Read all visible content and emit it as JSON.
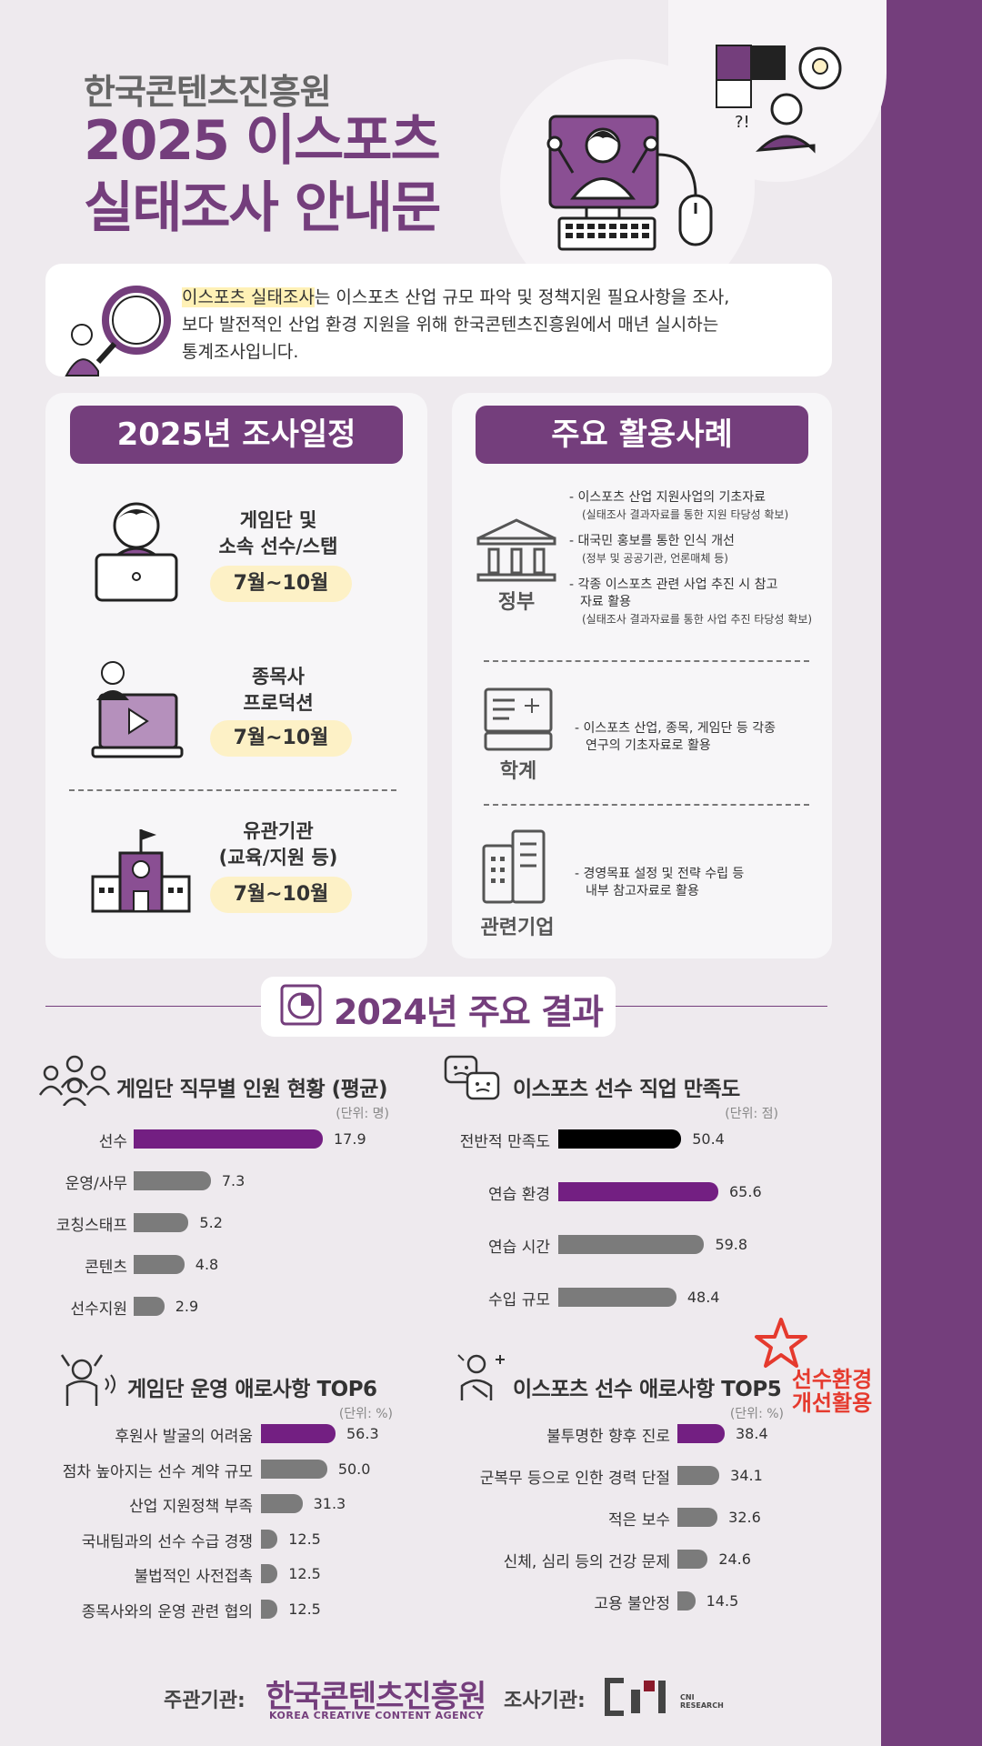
{
  "header": {
    "org": "한국콘텐츠진흥원",
    "title_line1": "2025 이스포츠",
    "title_line2": "실태조사 안내문"
  },
  "intro": {
    "highlight": "이스포츠 실태조사",
    "text_line1_rest": "는 이스포츠 산업 규모 파악 및 정책지원 필요사항을 조사,",
    "text_line2": "보다 발전적인 산업 환경 지원을 위해 한국콘텐츠진흥원에서 매년 실시하는",
    "text_line3": "통계조사입니다."
  },
  "schedule": {
    "heading": "2025년 조사일정",
    "items": [
      {
        "label_line1": "게임단 및",
        "label_line2": "소속 선수/스탭",
        "period": "7월~10월"
      },
      {
        "label_line1": "종목사",
        "label_line2": "프로덕션",
        "period": "7월~10월"
      },
      {
        "label_line1": "유관기관",
        "label_line2": "(교육/지원 등)",
        "period": "7월~10월"
      }
    ]
  },
  "uses": {
    "heading": "주요 활용사례",
    "government": {
      "label": "정부",
      "items": [
        {
          "main": "- 이스포츠 산업 지원사업의 기초자료",
          "sub": "(실태조사 결과자료를 통한 지원 타당성 확보)"
        },
        {
          "main": "- 대국민 홍보를 통한 인식 개선",
          "sub": "(정부 및 공공기관, 언론매체 등)"
        },
        {
          "main": "- 각종 이스포츠 관련 사업 추진 시 참고",
          "main2": "자료 활용",
          "sub": "(실태조사 결과자료를 통한 사업 추진 타당성 확보)"
        }
      ]
    },
    "academia": {
      "label": "학계",
      "line1": "- 이스포츠 산업, 종목, 게임단 등 각종",
      "line2": "연구의 기초자료로 활용"
    },
    "companies": {
      "label": "관련기업",
      "line1": "- 경영목표 설정 및 전략 수립 등",
      "line2": "내부 참고자료로 활용"
    }
  },
  "results": {
    "heading": "2024년 주요 결과"
  },
  "chart_data": [
    {
      "type": "bar",
      "title": "게임단 직무별 인원 현황 (평균)",
      "unit": "(단위: 명)",
      "categories": [
        "선수",
        "운영/사무",
        "코칭스태프",
        "콘텐츠",
        "선수지원"
      ],
      "values": [
        17.9,
        7.3,
        5.2,
        4.8,
        2.9
      ],
      "value_labels": [
        "17.9",
        "7.3",
        "5.2",
        "4.8",
        "2.9"
      ],
      "max": 17.9,
      "highlight_color": "#731f82"
    },
    {
      "type": "bar",
      "title": "이스포츠 선수 직업 만족도",
      "unit": "(단위: 점)",
      "categories": [
        "전반적 만족도",
        "연습 환경",
        "연습 시간",
        "수입 규모"
      ],
      "values": [
        50.4,
        65.6,
        59.8,
        48.4
      ],
      "value_labels": [
        "50.4",
        "65.6",
        "59.8",
        "48.4"
      ],
      "max": 65.6,
      "colors": [
        "#000000",
        "#731f82",
        "#7b7b7b",
        "#7b7b7b"
      ]
    },
    {
      "type": "bar",
      "title": "게임단 운영 애로사항 TOP6",
      "unit": "(단위: %)",
      "categories": [
        "후원사 발굴의 어려움",
        "점차 높아지는 선수 계약 규모",
        "산업 지원정책 부족",
        "국내팀과의 선수 수급 경쟁",
        "불법적인 사전접촉",
        "종목사와의 운영 관련 협의"
      ],
      "values": [
        56.3,
        50.0,
        31.3,
        12.5,
        12.5,
        12.5
      ],
      "value_labels": [
        "56.3",
        "50.0",
        "31.3",
        "12.5",
        "12.5",
        "12.5"
      ],
      "max": 56.3,
      "highlight_color": "#731f82"
    },
    {
      "type": "bar",
      "title": "이스포츠 선수 애로사항 TOP5",
      "unit": "(단위: %)",
      "categories": [
        "불투명한 향후 진로",
        "군복무 등으로 인한 경력 단절",
        "적은 보수",
        "신체, 심리 등의 건강 문제",
        "고용 불안정"
      ],
      "values": [
        38.4,
        34.1,
        32.6,
        24.6,
        14.5
      ],
      "value_labels": [
        "38.4",
        "34.1",
        "32.6",
        "24.6",
        "14.5"
      ],
      "max": 38.4,
      "highlight_color": "#731f82"
    }
  ],
  "stamp": {
    "line1": "선수환경",
    "line2": "개선활용",
    "color": "#e53a2e"
  },
  "footer": {
    "host_label": "주관기관:",
    "host_name": "한국콘텐츠진흥원",
    "host_name_en": "KOREA CREATIVE CONTENT AGENCY",
    "survey_label": "조사기관:",
    "survey_logo_text_line1": "CNI",
    "survey_logo_text_line2": "RESEARCH"
  },
  "colors": {
    "brand_purple": "#743e7c",
    "bar_purple": "#731f82",
    "bar_gray": "#7b7b7b",
    "pill_yellow": "#fdf1c6"
  }
}
